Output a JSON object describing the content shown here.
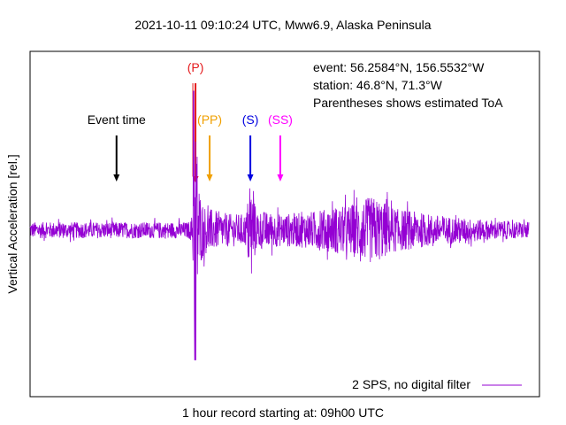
{
  "chart_data": {
    "type": "line",
    "title": "2021-10-11 09:10:24 UTC, Mww6.9, Alaska Peninsula",
    "xlabel": "1 hour record starting at: 09h00 UTC",
    "ylabel": "Vertical Acceleration [rel.]",
    "xlim": [
      0,
      60
    ],
    "ylim": [
      -1,
      1
    ],
    "info_lines": [
      "event: 56.2584°N, 156.5532°W",
      "station: 46.8°N, 71.3°W",
      "Parentheses shows estimated ToA"
    ],
    "event_time": {
      "label": "Event time",
      "minute": 10.4,
      "color": "#000000"
    },
    "phases": [
      {
        "label": "(P)",
        "minute": 19.9,
        "color": "#e41a1c"
      },
      {
        "label": "(PP)",
        "minute": 21.6,
        "color": "#f0a000"
      },
      {
        "label": "(S)",
        "minute": 26.5,
        "color": "#0000e0"
      },
      {
        "label": "(SS)",
        "minute": 30.1,
        "color": "#ff00ff"
      }
    ],
    "series": [
      {
        "name": "2 SPS, no digital filter",
        "color": "#9400d3",
        "envelope": [
          [
            0,
            0.06
          ],
          [
            19.0,
            0.06
          ],
          [
            19.4,
            0.08
          ],
          [
            19.5,
            0.15
          ],
          [
            19.7,
            0.55
          ],
          [
            19.85,
            0.98
          ],
          [
            20.0,
            0.6
          ],
          [
            20.5,
            0.25
          ],
          [
            21.0,
            0.18
          ],
          [
            22.0,
            0.15
          ],
          [
            24.0,
            0.12
          ],
          [
            26.0,
            0.12
          ],
          [
            26.3,
            0.3
          ],
          [
            26.8,
            0.3
          ],
          [
            27.2,
            0.15
          ],
          [
            30.0,
            0.12
          ],
          [
            33.0,
            0.13
          ],
          [
            36.0,
            0.16
          ],
          [
            38.0,
            0.18
          ],
          [
            40.0,
            0.22
          ],
          [
            41.0,
            0.25
          ],
          [
            42.0,
            0.23
          ],
          [
            44.0,
            0.16
          ],
          [
            48.0,
            0.12
          ],
          [
            52.0,
            0.09
          ],
          [
            56.0,
            0.07
          ],
          [
            60.0,
            0.06
          ]
        ]
      }
    ],
    "legend_position": "bottom-right",
    "grid": false
  }
}
